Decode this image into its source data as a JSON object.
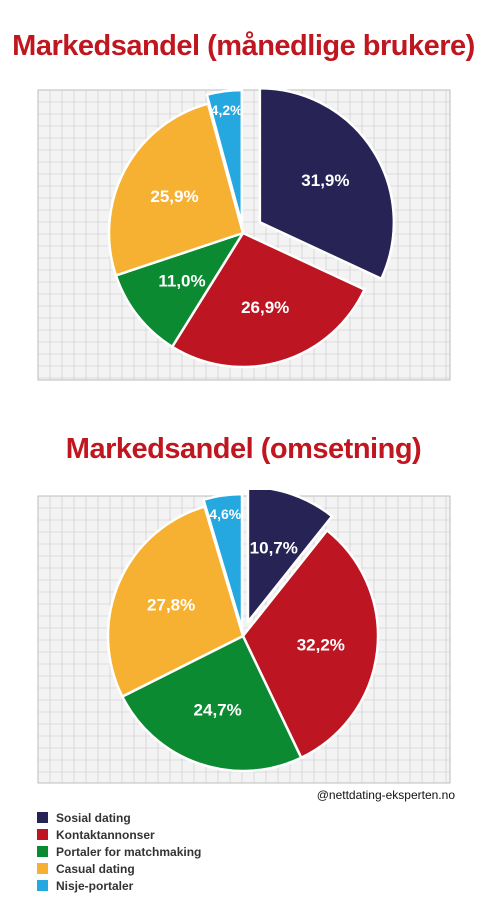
{
  "chart_data": [
    {
      "type": "pie",
      "title": "Markedsandel (månedlige brukere)",
      "categories": [
        "Sosial dating",
        "Kontaktannonser",
        "Portaler for matchmaking",
        "Casual dating",
        "Nisje-portaler"
      ],
      "values": [
        31.9,
        26.9,
        11.0,
        25.9,
        4.2
      ],
      "labels": [
        "31,9%",
        "26,9%",
        "11,0%",
        "25,9%",
        "4,2%"
      ],
      "exploded": [
        "Sosial dating",
        "Nisje-portaler"
      ],
      "start_angle_deg": 0,
      "direction": "clockwise",
      "grid": true
    },
    {
      "type": "pie",
      "title": "Markedsandel (omsetning)",
      "categories": [
        "Sosial dating",
        "Kontaktannonser",
        "Portaler for matchmaking",
        "Casual dating",
        "Nisje-portaler"
      ],
      "values": [
        10.7,
        32.2,
        24.7,
        27.8,
        4.6
      ],
      "labels": [
        "10,7%",
        "32,2%",
        "24,7%",
        "27,8%",
        "4,6%"
      ],
      "exploded": [
        "Sosial dating",
        "Nisje-portaler"
      ],
      "start_angle_deg": 0,
      "direction": "clockwise",
      "grid": true
    }
  ],
  "legend": {
    "items": [
      {
        "label": "Sosial dating",
        "color": "#272355"
      },
      {
        "label": "Kontaktannonser",
        "color": "#bd1622"
      },
      {
        "label": "Portaler for matchmaking",
        "color": "#0b8a32"
      },
      {
        "label": "Casual dating",
        "color": "#f7b132"
      },
      {
        "label": "Nisje-portaler",
        "color": "#25a7e0"
      }
    ]
  },
  "credit": "@nettdating-eksperten.no",
  "colors": {
    "title": "#c0161f",
    "grid_bg": "#f3f3f3",
    "grid_line": "#c9c9c9",
    "slice_label": "#ffffff",
    "slice_label_dark": "#ffffff"
  }
}
